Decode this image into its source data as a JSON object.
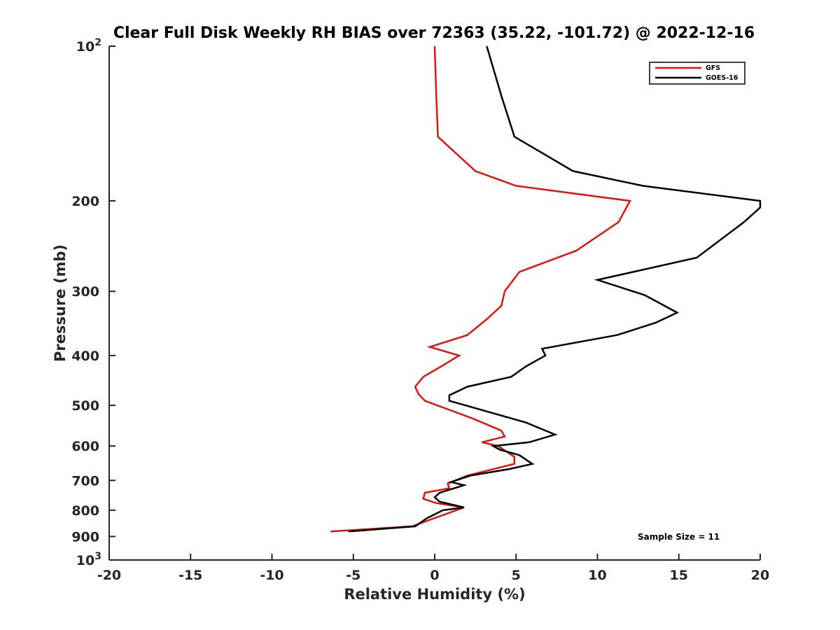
{
  "chart_data": {
    "type": "line",
    "title": "Clear Full Disk Weekly RH BIAS over 72363 (35.22, -101.72) @ 2022-12-16",
    "xlabel": "Relative Humidity (%)",
    "ylabel": "Pressure (mb)",
    "xlim": [
      -20,
      20
    ],
    "ylim": [
      100,
      1000
    ],
    "yscale": "log",
    "yreversed": true,
    "x_ticks": [
      "-20",
      "-15",
      "-10",
      "-5",
      "0",
      "5",
      "10",
      "15",
      "20"
    ],
    "y_ticks": [
      {
        "value": 100,
        "label": "10",
        "sup": "2"
      },
      {
        "value": 200,
        "label": "200",
        "sup": ""
      },
      {
        "value": 300,
        "label": "300",
        "sup": ""
      },
      {
        "value": 400,
        "label": "400",
        "sup": ""
      },
      {
        "value": 500,
        "label": "500",
        "sup": ""
      },
      {
        "value": 600,
        "label": "600",
        "sup": ""
      },
      {
        "value": 700,
        "label": "700",
        "sup": ""
      },
      {
        "value": 800,
        "label": "800",
        "sup": ""
      },
      {
        "value": 900,
        "label": "900",
        "sup": ""
      },
      {
        "value": 1000,
        "label": "10",
        "sup": "3"
      }
    ],
    "legend_position": "top-right",
    "grid": false,
    "series": [
      {
        "name": "GFS",
        "color": "#e0140e",
        "points": [
          [
            0.0,
            100
          ],
          [
            0.1,
            125
          ],
          [
            0.2,
            150
          ],
          [
            2.5,
            175
          ],
          [
            5.0,
            187
          ],
          [
            12.0,
            200
          ],
          [
            11.3,
            220
          ],
          [
            8.7,
            250
          ],
          [
            5.2,
            275
          ],
          [
            4.3,
            300
          ],
          [
            4.1,
            320
          ],
          [
            3.2,
            340
          ],
          [
            2.0,
            365
          ],
          [
            -0.3,
            385
          ],
          [
            1.5,
            400
          ],
          [
            0.4,
            420
          ],
          [
            -0.7,
            440
          ],
          [
            -1.2,
            460
          ],
          [
            -1.0,
            475
          ],
          [
            -0.6,
            490
          ],
          [
            2.3,
            530
          ],
          [
            4.1,
            560
          ],
          [
            4.3,
            575
          ],
          [
            2.9,
            590
          ],
          [
            3.9,
            600
          ],
          [
            4.9,
            630
          ],
          [
            4.9,
            650
          ],
          [
            2.0,
            685
          ],
          [
            0.8,
            710
          ],
          [
            0.9,
            725
          ],
          [
            -0.6,
            740
          ],
          [
            -0.7,
            760
          ],
          [
            0.1,
            775
          ],
          [
            1.8,
            790
          ],
          [
            -1.4,
            860
          ],
          [
            -6.4,
            880
          ]
        ]
      },
      {
        "name": "GOES-16",
        "color": "#000000",
        "points": [
          [
            3.2,
            100
          ],
          [
            4.1,
            125
          ],
          [
            4.9,
            150
          ],
          [
            8.5,
            175
          ],
          [
            12.8,
            187
          ],
          [
            20.0,
            200
          ],
          [
            20.0,
            206
          ],
          [
            19.0,
            220
          ],
          [
            17.8,
            235
          ],
          [
            16.1,
            258
          ],
          [
            10.0,
            285
          ],
          [
            12.9,
            305
          ],
          [
            14.9,
            330
          ],
          [
            13.6,
            345
          ],
          [
            11.2,
            365
          ],
          [
            6.6,
            388
          ],
          [
            6.8,
            400
          ],
          [
            5.6,
            420
          ],
          [
            4.7,
            440
          ],
          [
            2.0,
            460
          ],
          [
            0.9,
            478
          ],
          [
            0.9,
            490
          ],
          [
            5.6,
            540
          ],
          [
            7.4,
            570
          ],
          [
            5.8,
            590
          ],
          [
            3.6,
            600
          ],
          [
            4.0,
            610
          ],
          [
            5.2,
            625
          ],
          [
            6.0,
            650
          ],
          [
            4.6,
            665
          ],
          [
            2.2,
            685
          ],
          [
            1.0,
            705
          ],
          [
            1.8,
            715
          ],
          [
            0.3,
            740
          ],
          [
            0.0,
            755
          ],
          [
            0.3,
            770
          ],
          [
            1.8,
            790
          ],
          [
            0.5,
            800
          ],
          [
            -0.5,
            830
          ],
          [
            -1.2,
            860
          ],
          [
            -5.3,
            880
          ]
        ]
      }
    ],
    "annotations": [
      {
        "text": "Sample Size = 11",
        "position": "bottom-right"
      }
    ]
  }
}
